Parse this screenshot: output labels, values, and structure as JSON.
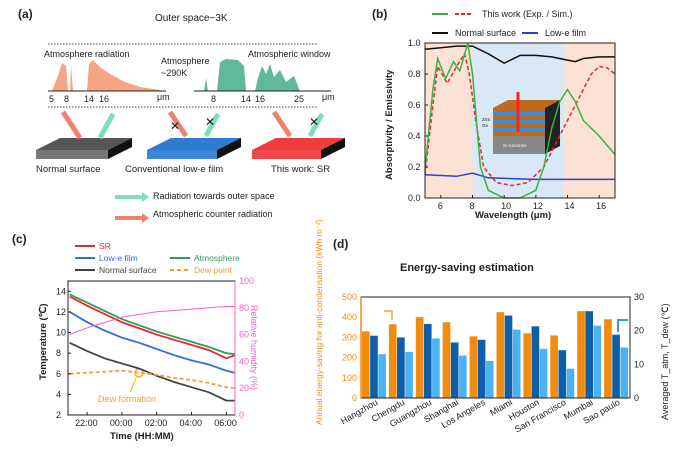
{
  "panel_a": {
    "label": "(a)",
    "outer_space": "Outer space~3K",
    "atm_radiation": "Atmosphere radiation",
    "atm_temp_line1": "Atmosphere",
    "atm_temp_line2": "~290K",
    "atm_window": "Atmospheric window",
    "axis1_ticks": [
      "5",
      "8",
      "14",
      "16"
    ],
    "axis2_ticks": [
      "8",
      "14",
      "16",
      "25"
    ],
    "unit": "μm",
    "surfaces": [
      "Normal surface",
      "Conventional low-e film",
      "This work: SR"
    ],
    "legend": [
      "Radiation towards outer space",
      "Atmospheric counter radiation"
    ],
    "colors": {
      "orange": "#f4a582",
      "green": "#5fb99a",
      "teal_arrow": "#7fdcc0",
      "gray": "#666666",
      "blue": "#2f7bd1",
      "red": "#ee3b3b"
    }
  },
  "chart_data": [
    {
      "panel": "(b)",
      "type": "line",
      "xlabel": "Wavelength (μm)",
      "ylabel": "Absorptivity / Emissivity",
      "xlim": [
        5,
        17
      ],
      "ylim": [
        0,
        1.0
      ],
      "xticks": [
        "6",
        "8",
        "10",
        "12",
        "14",
        "16"
      ],
      "yticks": [
        "0.0",
        "0.2",
        "0.4",
        "0.6",
        "0.8",
        "1.0"
      ],
      "legend_top": "This work (Exp. / Sim.)",
      "shaded_regions": [
        {
          "from": 5,
          "to": 8,
          "color": "#fbe2d4"
        },
        {
          "from": 8,
          "to": 13.8,
          "color": "#d9e8f5"
        },
        {
          "from": 13.8,
          "to": 17,
          "color": "#fbe2d4"
        }
      ],
      "inset_labels": [
        "ZnS",
        "Ge",
        "Si substrate"
      ],
      "series": [
        {
          "name": "This work (Exp.)",
          "color": "#3bb143",
          "dash": false,
          "x": [
            5,
            5.5,
            5.8,
            6.3,
            6.8,
            7.2,
            7.7,
            8,
            8.5,
            9,
            10,
            11,
            12,
            12.5,
            13,
            13.5,
            14,
            14.5,
            15,
            16,
            17
          ],
          "y": [
            0.18,
            0.7,
            0.9,
            0.77,
            0.88,
            0.82,
            1.0,
            0.8,
            0.2,
            0.05,
            0.0,
            0.0,
            0.05,
            0.2,
            0.45,
            0.62,
            0.7,
            0.62,
            0.5,
            0.4,
            0.28
          ]
        },
        {
          "name": "This work (Sim.)",
          "color": "#e8262b",
          "dash": true,
          "x": [
            5,
            5.5,
            5.8,
            6.4,
            7,
            7.5,
            7.8,
            8.2,
            8.7,
            9.5,
            10.5,
            11.5,
            12.5,
            13.5,
            14.5,
            15.5,
            16,
            16.5,
            17
          ],
          "y": [
            0.15,
            0.6,
            0.85,
            0.74,
            0.85,
            0.93,
            0.8,
            0.5,
            0.2,
            0.1,
            0.08,
            0.1,
            0.2,
            0.4,
            0.6,
            0.8,
            0.85,
            0.84,
            0.8
          ]
        },
        {
          "name": "Normal surface",
          "color": "#111111",
          "dash": false,
          "x": [
            5,
            6,
            7,
            8,
            9,
            10,
            11,
            12,
            13,
            14,
            14.5,
            15,
            16,
            17
          ],
          "y": [
            0.96,
            0.97,
            0.98,
            0.98,
            0.93,
            0.87,
            0.92,
            0.92,
            0.91,
            0.89,
            0.88,
            0.9,
            0.91,
            0.91
          ]
        },
        {
          "name": "Low-e film",
          "color": "#3040c8",
          "dash": false,
          "x": [
            5,
            7,
            8,
            9,
            12,
            17
          ],
          "y": [
            0.15,
            0.14,
            0.16,
            0.13,
            0.12,
            0.12
          ]
        }
      ]
    },
    {
      "panel": "(c)",
      "type": "line",
      "xlabel": "Time (HH:MM)",
      "ylabel": "Temperature (℃)",
      "ylabel_right": "Relative humidity (%)",
      "ylim": [
        2,
        15
      ],
      "ylim_right": [
        0,
        100
      ],
      "xticks": [
        "22:00",
        "00:00",
        "02:00",
        "04:00",
        "06:00"
      ],
      "yticks": [
        "2",
        "4",
        "6",
        "8",
        "10",
        "12",
        "14"
      ],
      "yticks_right": [
        "0",
        "20",
        "40",
        "60",
        "80",
        "100"
      ],
      "x": [
        "21:00",
        "22:00",
        "23:00",
        "00:00",
        "01:00",
        "02:00",
        "03:00",
        "04:00",
        "05:00",
        "06:00",
        "06:30"
      ],
      "annotation": "Dew formation",
      "series": [
        {
          "name": "SR",
          "color": "#e8262b",
          "dash": false,
          "axis": "left",
          "y": [
            13.5,
            12.6,
            11.8,
            11.0,
            10.4,
            9.8,
            9.3,
            8.8,
            8.3,
            7.5,
            7.8
          ]
        },
        {
          "name": "Low-e film",
          "color": "#2f6fe0",
          "dash": false,
          "axis": "left",
          "y": [
            12.0,
            11.0,
            10.2,
            9.5,
            9.0,
            8.4,
            7.8,
            7.3,
            6.9,
            6.3,
            6.1
          ]
        },
        {
          "name": "Atmosphere",
          "color": "#2e9c5a",
          "dash": false,
          "axis": "left",
          "y": [
            13.7,
            12.9,
            12.1,
            11.3,
            10.7,
            10.1,
            9.6,
            9.1,
            8.6,
            8.0,
            7.9
          ]
        },
        {
          "name": "Normal surface",
          "color": "#444444",
          "dash": false,
          "axis": "left",
          "y": [
            9.0,
            8.2,
            7.5,
            7.0,
            6.5,
            5.8,
            5.2,
            4.7,
            4.2,
            3.4,
            3.4
          ]
        },
        {
          "name": "Dew point",
          "color": "#f0a040",
          "dash": true,
          "axis": "left",
          "y": [
            6.0,
            6.1,
            6.2,
            6.3,
            6.1,
            5.9,
            5.6,
            5.4,
            5.1,
            4.7,
            4.6
          ]
        },
        {
          "name": "",
          "color": "#ff5fc8",
          "dash": false,
          "axis": "right",
          "y": [
            60,
            65,
            69,
            73,
            75,
            77,
            78,
            79,
            80,
            81,
            81
          ]
        }
      ]
    },
    {
      "panel": "(d)",
      "type": "bar",
      "title": "Energy-saving estimation",
      "ylabel": "Annual energy-saving for anti-condensation (kWh m⁻²)",
      "ylabel_right": "Averaged T_atm, T_dew (℃)",
      "ylim": [
        0,
        500
      ],
      "ylim_right": [
        0,
        30
      ],
      "yticks": [
        "0",
        "100",
        "200",
        "300",
        "400",
        "500"
      ],
      "yticks_right": [
        "0",
        "10",
        "20",
        "30"
      ],
      "categories": [
        "Hangzhou",
        "Chengdu",
        "Guangzhou",
        "Shanghai",
        "Los Angeles",
        "Miami",
        "Houston",
        "San Francisco",
        "Mumbai",
        "Sao paulo"
      ],
      "series": [
        {
          "name": "Energy saving",
          "color": "#f28c0f",
          "axis": "left",
          "values": [
            330,
            365,
            400,
            375,
            305,
            425,
            320,
            310,
            430,
            390
          ]
        },
        {
          "name": "T_atm",
          "color": "#0e5fa8",
          "axis": "right",
          "values": [
            18.5,
            18,
            22,
            16.5,
            17.3,
            24.5,
            21.3,
            14.2,
            25.8,
            18.8
          ]
        },
        {
          "name": "T_dew",
          "color": "#4cb3f0",
          "axis": "right",
          "values": [
            13,
            13.7,
            17.7,
            12.6,
            11,
            20.3,
            14.6,
            8.7,
            21.5,
            15
          ]
        }
      ]
    }
  ]
}
